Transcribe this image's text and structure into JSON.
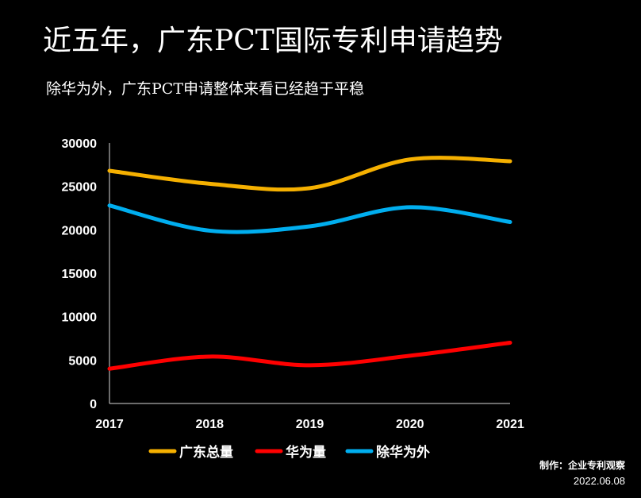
{
  "title": "近五年，广东PCT国际专利申请趋势",
  "subtitle": "除华为外，广东PCT申请整体来看已经趋于平稳",
  "credit": {
    "author": "制作：企业专利观察",
    "date": "2022.06.08"
  },
  "chart_data": {
    "type": "line",
    "categories": [
      "2017",
      "2018",
      "2019",
      "2020",
      "2021"
    ],
    "ylim": [
      0,
      30000
    ],
    "yticks": [
      "0",
      "5000",
      "10000",
      "15000",
      "20000",
      "25000",
      "30000"
    ],
    "smooth": true,
    "legend_position": "bottom",
    "series": [
      {
        "name": "广东总量",
        "color": "#F5B000",
        "values": [
          26800,
          25300,
          24800,
          28100,
          27900
        ]
      },
      {
        "name": "华为量",
        "color": "#FF0000",
        "values": [
          4000,
          5400,
          4400,
          5500,
          7000
        ]
      },
      {
        "name": "除华为外",
        "color": "#00AEEF",
        "values": [
          22800,
          19900,
          20400,
          22600,
          20900
        ]
      }
    ]
  }
}
